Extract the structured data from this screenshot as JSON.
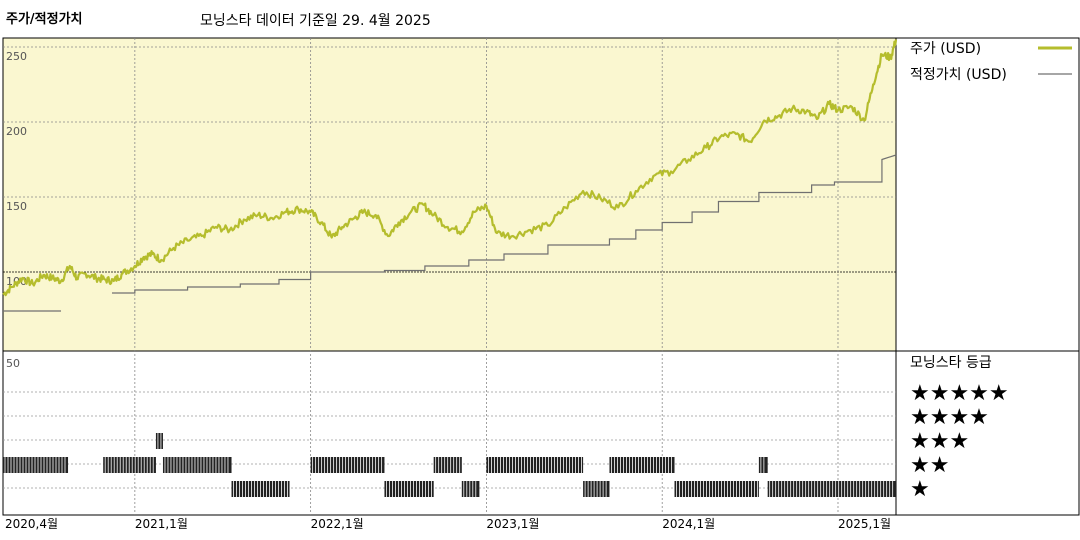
{
  "header": {
    "title": "주가/적정가치",
    "subtitle": "모닝스타 데이터 기준일 29. 4월 2025"
  },
  "chart_data": {
    "type": "line",
    "y_ticks": [
      "250",
      "200",
      "150",
      "100"
    ],
    "y_lower_tick": "50",
    "x_tick_labels": [
      "2020,4월",
      "2021,1월",
      "2022,1월",
      "2023,1월",
      "2024,1월",
      "2025,1월"
    ],
    "x_ticks": [
      2020.25,
      2021.0,
      2022.0,
      2023.0,
      2024.0,
      2025.0
    ],
    "xlim": [
      2020.25,
      2025.33
    ],
    "ylim": [
      55,
      260
    ],
    "grid": true,
    "legend_position": "right",
    "colors": {
      "price": "#b5bd2d",
      "fair_value": "#707070",
      "plot_bg": "#faf7d0"
    },
    "series": [
      {
        "name": "주가 (USD)",
        "x": [
          2020.25,
          2020.3,
          2020.36,
          2020.42,
          2020.48,
          2020.53,
          2020.58,
          2020.63,
          2020.67,
          2020.72,
          2020.78,
          2020.83,
          2020.88,
          2020.93,
          2021.0,
          2021.05,
          2021.1,
          2021.15,
          2021.22,
          2021.3,
          2021.38,
          2021.46,
          2021.54,
          2021.62,
          2021.7,
          2021.78,
          2021.86,
          2021.93,
          2022.0,
          2022.06,
          2022.12,
          2022.18,
          2022.25,
          2022.3,
          2022.37,
          2022.44,
          2022.5,
          2022.57,
          2022.64,
          2022.7,
          2022.78,
          2022.86,
          2022.93,
          2023.0,
          2023.06,
          2023.15,
          2023.25,
          2023.35,
          2023.45,
          2023.55,
          2023.65,
          2023.75,
          2023.85,
          2023.95,
          2024.05,
          2024.15,
          2024.25,
          2024.33,
          2024.42,
          2024.5,
          2024.58,
          2024.66,
          2024.74,
          2024.82,
          2024.88,
          2024.95,
          2025.0,
          2025.08,
          2025.15,
          2025.2,
          2025.25,
          2025.3,
          2025.33
        ],
        "values": [
          85,
          90,
          96,
          92,
          98,
          96,
          94,
          104,
          96,
          99,
          96,
          95,
          94,
          99,
          104,
          110,
          112,
          108,
          116,
          121,
          124,
          130,
          128,
          135,
          138,
          136,
          140,
          142,
          140,
          133,
          123,
          130,
          136,
          140,
          138,
          124,
          133,
          140,
          145,
          138,
          130,
          127,
          140,
          144,
          126,
          124,
          128,
          131,
          143,
          154,
          149,
          143,
          154,
          164,
          167,
          175,
          183,
          190,
          192,
          187,
          201,
          204,
          209,
          207,
          202,
          212,
          208,
          210,
          201,
          225,
          245,
          243,
          255
        ]
      },
      {
        "name": "적정가치 (USD)",
        "x": [
          2020.25,
          2020.58,
          2020.58,
          2020.87,
          2020.87,
          2021.0,
          2021.0,
          2021.3,
          2021.3,
          2021.6,
          2021.6,
          2021.82,
          2021.82,
          2022.0,
          2022.0,
          2022.42,
          2022.42,
          2022.65,
          2022.65,
          2022.9,
          2022.9,
          2023.1,
          2023.1,
          2023.35,
          2023.35,
          2023.7,
          2023.7,
          2023.85,
          2023.85,
          2024.0,
          2024.0,
          2024.17,
          2024.17,
          2024.32,
          2024.32,
          2024.55,
          2024.55,
          2024.85,
          2024.85,
          2024.98,
          2024.98,
          2025.25,
          2025.25,
          2025.33
        ],
        "values": [
          74,
          74,
          null,
          null,
          86,
          86,
          88,
          88,
          90,
          90,
          92,
          92,
          95,
          95,
          100,
          100,
          101,
          101,
          104,
          104,
          108,
          108,
          112,
          112,
          118,
          118,
          122,
          122,
          128,
          128,
          133,
          133,
          140,
          140,
          147,
          147,
          153,
          153,
          158,
          158,
          160,
          160,
          175,
          178
        ]
      }
    ],
    "rating_panel": {
      "title": "모닝스타 등급",
      "star_labels": [
        "★★★★★",
        "★★★★",
        "★★★",
        "★★",
        "★"
      ],
      "ratings_timeline": [
        {
          "from": 2020.25,
          "to": 2020.62,
          "stars": 2
        },
        {
          "from": 2020.82,
          "to": 2021.12,
          "stars": 2
        },
        {
          "from": 2021.12,
          "to": 2021.16,
          "stars": 3
        },
        {
          "from": 2021.16,
          "to": 2021.55,
          "stars": 2
        },
        {
          "from": 2021.55,
          "to": 2021.88,
          "stars": 1
        },
        {
          "from": 2022.0,
          "to": 2022.42,
          "stars": 2
        },
        {
          "from": 2022.42,
          "to": 2022.7,
          "stars": 1
        },
        {
          "from": 2022.7,
          "to": 2022.86,
          "stars": 2
        },
        {
          "from": 2022.86,
          "to": 2022.96,
          "stars": 1
        },
        {
          "from": 2023.0,
          "to": 2023.55,
          "stars": 2
        },
        {
          "from": 2023.55,
          "to": 2023.7,
          "stars": 1
        },
        {
          "from": 2023.7,
          "to": 2024.07,
          "stars": 2
        },
        {
          "from": 2024.07,
          "to": 2024.55,
          "stars": 1
        },
        {
          "from": 2024.55,
          "to": 2024.6,
          "stars": 2
        },
        {
          "from": 2024.6,
          "to": 2025.33,
          "stars": 1
        }
      ]
    }
  }
}
